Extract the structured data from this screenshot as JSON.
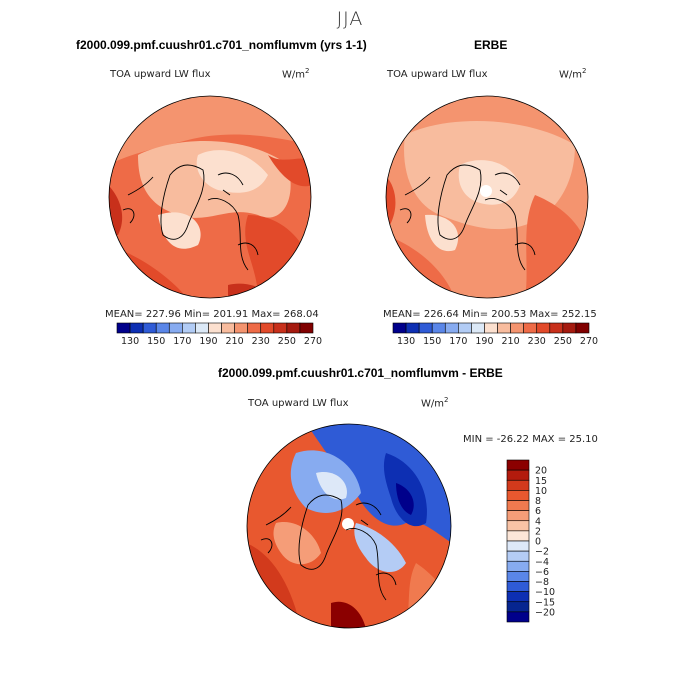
{
  "title": "JJA",
  "panels": [
    {
      "title": "f2000.099.pmf.cuushr01.c701_nomflumvm (yrs 1-1)",
      "variable": "TOA upward LW flux",
      "units": "W/m",
      "units_exp": "2",
      "stats": "MEAN= 227.96   Min= 201.91   Max= 268.04"
    },
    {
      "title": "ERBE",
      "variable": "TOA upward LW flux",
      "units": "W/m",
      "units_exp": "2",
      "stats": "MEAN= 226.64   Min= 200.53   Max= 252.15"
    },
    {
      "title": "f2000.099.pmf.cuushr01.c701_nomflumvm - ERBE",
      "variable": "TOA upward LW flux",
      "units": "W/m",
      "units_exp": "2",
      "minmax": "MIN = -26.22  MAX =  25.10"
    }
  ],
  "chart_data": [
    {
      "type": "heatmap",
      "projection": "north polar stereographic",
      "title": "f2000.099.pmf.cuushr01.c701_nomflumvm (yrs 1-1)",
      "variable": "TOA upward LW flux",
      "units": "W/m2",
      "mean": 227.96,
      "min": 201.91,
      "max": 268.04,
      "colorbar_ticks": [
        "130",
        "150",
        "170",
        "190",
        "210",
        "230",
        "250",
        "270"
      ],
      "colorbar_colors": [
        "#00008b",
        "#0d2fb3",
        "#2f5bd6",
        "#5a86e8",
        "#87abf0",
        "#b2ccf5",
        "#dce9f7",
        "#fce0cf",
        "#f8bc9e",
        "#f4946f",
        "#ee6b47",
        "#e24a2a",
        "#c8301b",
        "#a51a0f",
        "#800000"
      ]
    },
    {
      "type": "heatmap",
      "projection": "north polar stereographic",
      "title": "ERBE",
      "variable": "TOA upward LW flux",
      "units": "W/m2",
      "mean": 226.64,
      "min": 200.53,
      "max": 252.15,
      "colorbar_ticks": [
        "130",
        "150",
        "170",
        "190",
        "210",
        "230",
        "250",
        "270"
      ],
      "colorbar_colors": [
        "#00008b",
        "#0d2fb3",
        "#2f5bd6",
        "#5a86e8",
        "#87abf0",
        "#b2ccf5",
        "#dce9f7",
        "#fce0cf",
        "#f8bc9e",
        "#f4946f",
        "#ee6b47",
        "#e24a2a",
        "#c8301b",
        "#a51a0f",
        "#800000"
      ]
    },
    {
      "type": "heatmap",
      "projection": "north polar stereographic",
      "title": "f2000.099.pmf.cuushr01.c701_nomflumvm - ERBE",
      "variable": "TOA upward LW flux",
      "units": "W/m2",
      "min": -26.22,
      "max": 25.1,
      "colorbar_ticks": [
        "20",
        "15",
        "10",
        "8",
        "6",
        "4",
        "2",
        "0",
        "−2",
        "−4",
        "−6",
        "−8",
        "−10",
        "−15",
        "−20"
      ],
      "colorbar_colors": [
        "#8b0000",
        "#b31b0d",
        "#d23a1c",
        "#e8582f",
        "#f07a4f",
        "#f59d78",
        "#f9c3a6",
        "#fce6d8",
        "#dde8f8",
        "#b4ccf5",
        "#87abf0",
        "#5a86e8",
        "#2f5bd6",
        "#0d2fb3",
        "#062590",
        "#00008b"
      ]
    }
  ]
}
